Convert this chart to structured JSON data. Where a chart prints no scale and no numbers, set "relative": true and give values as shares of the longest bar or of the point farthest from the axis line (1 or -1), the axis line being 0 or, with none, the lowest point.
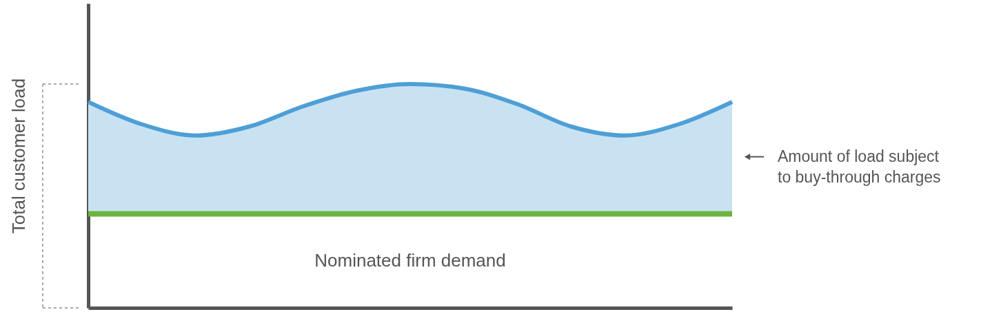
{
  "chart_data": {
    "type": "line",
    "relative": true,
    "ylabel": "Total customer load",
    "categories": [
      null,
      null,
      null,
      null,
      null,
      null,
      null,
      null,
      null,
      null,
      null,
      null,
      null
    ],
    "series": [
      {
        "type": "area",
        "color": "#4e9fd6",
        "values": [
          0.92,
          0.82,
          0.77,
          0.81,
          0.9,
          0.97,
          1.0,
          0.98,
          0.91,
          0.81,
          0.77,
          0.82,
          0.92
        ]
      },
      {
        "type": "line",
        "color": "#6db33f",
        "values": [
          0.42,
          0.42,
          0.42,
          0.42,
          0.42,
          0.42,
          0.42,
          0.42,
          0.42,
          0.42,
          0.42,
          0.42,
          0.42
        ]
      }
    ],
    "annotations": [
      "Nominated firm demand",
      "Amount of load subject\nto buy-through charges"
    ],
    "grid": false,
    "marker": "none",
    "line_style": "solid"
  }
}
